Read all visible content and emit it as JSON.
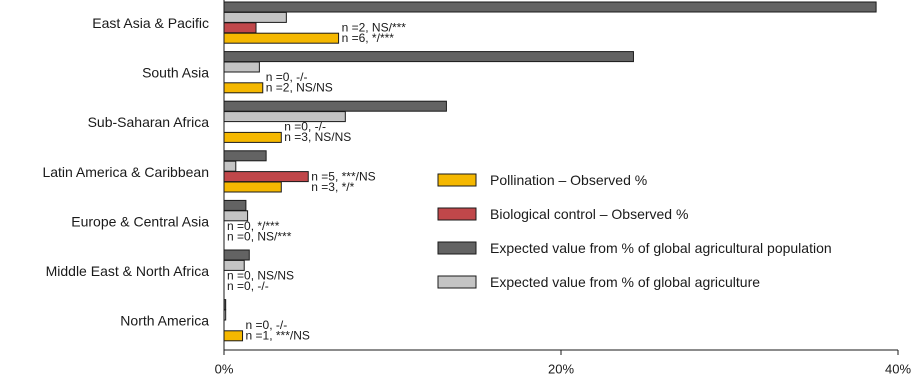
{
  "chart_data": {
    "type": "bar",
    "orientation": "horizontal",
    "title": "",
    "xlabel": "",
    "ylabel": "",
    "xlim": [
      0,
      40
    ],
    "x_ticks": [
      {
        "value": 0,
        "label": "0%"
      },
      {
        "value": 20,
        "label": "20%"
      },
      {
        "value": 40,
        "label": "40%"
      }
    ],
    "grid": false,
    "legend_position": "center-right",
    "categories": [
      "East Asia & Pacific",
      "South Asia",
      "Sub-Saharan Africa",
      "Latin America & Caribbean",
      "Europe & Central Asia",
      "Middle East & North Africa",
      "North America"
    ],
    "series": [
      {
        "name": "Expected value from % of global agricultural population",
        "color": "#636363",
        "values": [
          38.7,
          24.3,
          13.2,
          2.5,
          1.3,
          1.5,
          0.1
        ]
      },
      {
        "name": "Expected value from % of global agriculture",
        "color": "#c4c4c4",
        "values": [
          3.7,
          2.1,
          7.2,
          0.7,
          1.4,
          1.2,
          0.1
        ]
      },
      {
        "name": "Biological control – Observed %",
        "color": "#c0474a",
        "values": [
          1.9,
          0,
          0,
          5.0,
          0,
          0,
          0
        ]
      },
      {
        "name": "Pollination – Observed %",
        "color": "#f5b800",
        "values": [
          6.8,
          2.3,
          3.4,
          3.4,
          0,
          0,
          1.1
        ]
      }
    ],
    "annotations": [
      [
        "n =2, NS/***",
        "n =6, */***"
      ],
      [
        "n =0, -/-",
        "n =2, NS/NS"
      ],
      [
        "n =0, -/-",
        "n =3, NS/NS"
      ],
      [
        "n =5, ***/NS",
        "n =3, */*"
      ],
      [
        "n =0, */***",
        "n =0, NS/***"
      ],
      [
        "n =0, NS/NS",
        "n =0, -/-"
      ],
      [
        "n =0, -/-",
        "n =1, ***/NS"
      ]
    ],
    "legend_order": [
      3,
      2,
      0,
      1
    ]
  }
}
